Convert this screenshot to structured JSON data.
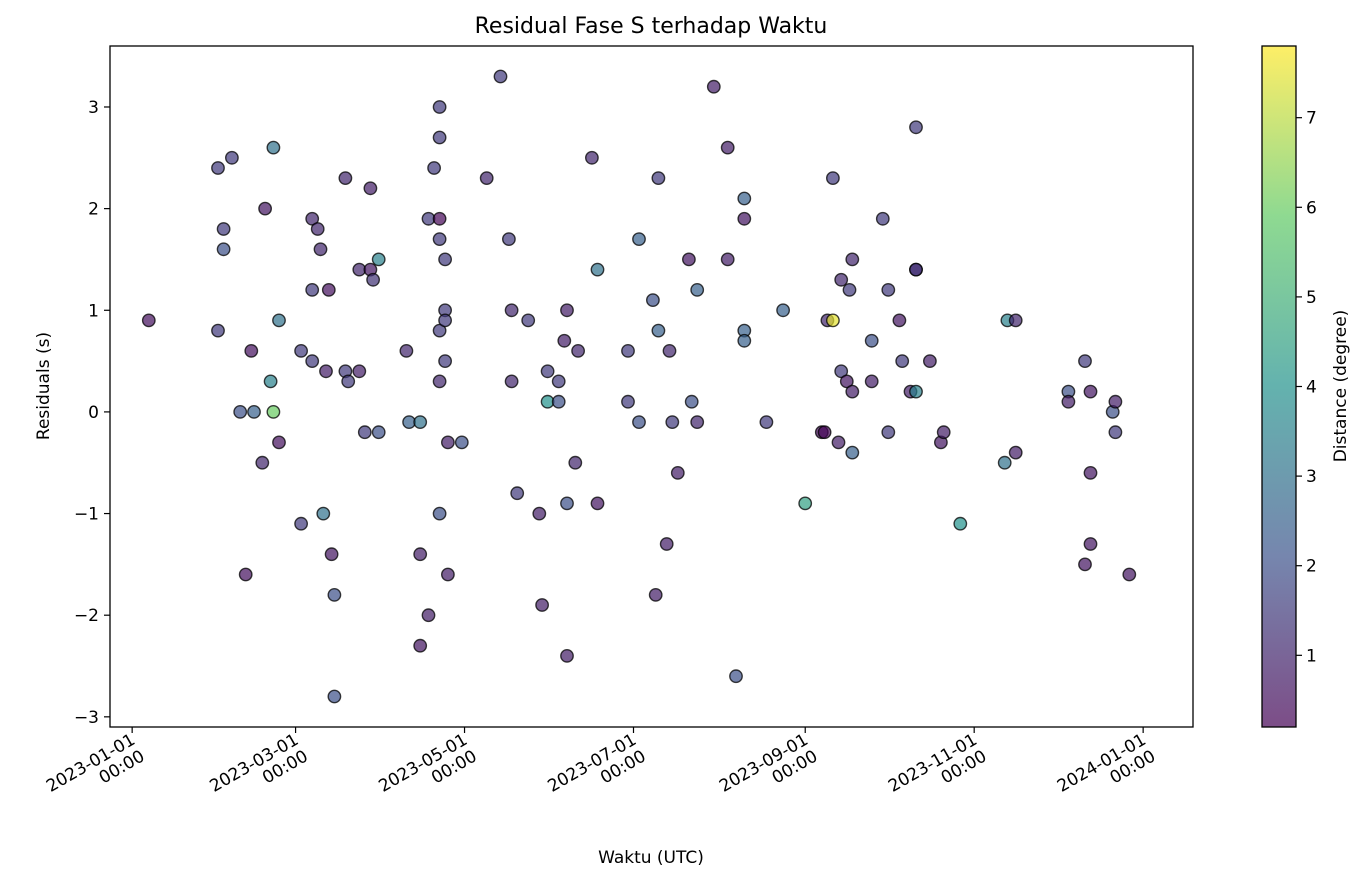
{
  "chart_data": {
    "type": "scatter",
    "title": "Residual Fase S terhadap Waktu",
    "xlabel": "Waktu (UTC)",
    "ylabel": "Residuals (s)",
    "colorbar_label": "Distance (degree)",
    "colormap": "viridis",
    "marker_alpha": 0.7,
    "marker_edge_color": "#000000",
    "grid": false,
    "xlim": [
      "2022-12-24",
      "2024-01-19"
    ],
    "ylim": [
      -3.1,
      3.6
    ],
    "yticks": [
      -3,
      -2,
      -1,
      0,
      1,
      2,
      3
    ],
    "ytick_labels": [
      "−3",
      "−2",
      "−1",
      "0",
      "1",
      "2",
      "3"
    ],
    "xticks": [
      "2023-01-01",
      "2023-03-01",
      "2023-05-01",
      "2023-07-01",
      "2023-09-01",
      "2023-11-01",
      "2024-01-01"
    ],
    "xtick_labels": [
      [
        "2023-01-01",
        "00:00"
      ],
      [
        "2023-03-01",
        "00:00"
      ],
      [
        "2023-05-01",
        "00:00"
      ],
      [
        "2023-07-01",
        "00:00"
      ],
      [
        "2023-09-01",
        "00:00"
      ],
      [
        "2023-11-01",
        "00:00"
      ],
      [
        "2024-01-01",
        "00:00"
      ]
    ],
    "clim": [
      0.2,
      7.8
    ],
    "cticks": [
      1,
      2,
      3,
      4,
      5,
      6,
      7
    ],
    "points": [
      {
        "date": "2023-01-07",
        "y": 0.9,
        "d": 0.5
      },
      {
        "date": "2023-02-01",
        "y": 2.4,
        "d": 1.5
      },
      {
        "date": "2023-02-06",
        "y": 2.5,
        "d": 1.5
      },
      {
        "date": "2023-02-03",
        "y": 1.8,
        "d": 1.5
      },
      {
        "date": "2023-02-03",
        "y": 1.6,
        "d": 2.0
      },
      {
        "date": "2023-02-01",
        "y": 0.8,
        "d": 1.5
      },
      {
        "date": "2023-02-09",
        "y": 0.0,
        "d": 2.0
      },
      {
        "date": "2023-02-14",
        "y": 0.0,
        "d": 2.5
      },
      {
        "date": "2023-02-11",
        "y": -1.6,
        "d": 0.5
      },
      {
        "date": "2023-02-13",
        "y": 0.6,
        "d": 0.5
      },
      {
        "date": "2023-02-18",
        "y": 2.0,
        "d": 0.6
      },
      {
        "date": "2023-02-21",
        "y": 2.6,
        "d": 3.0
      },
      {
        "date": "2023-02-23",
        "y": 0.9,
        "d": 3.0
      },
      {
        "date": "2023-02-20",
        "y": 0.3,
        "d": 3.5
      },
      {
        "date": "2023-02-21",
        "y": 0.0,
        "d": 6.0
      },
      {
        "date": "2023-02-17",
        "y": -0.5,
        "d": 1.0
      },
      {
        "date": "2023-02-23",
        "y": -0.3,
        "d": 0.5
      },
      {
        "date": "2023-03-03",
        "y": 0.6,
        "d": 1.5
      },
      {
        "date": "2023-03-07",
        "y": 0.5,
        "d": 1.5
      },
      {
        "date": "2023-03-03",
        "y": -1.1,
        "d": 1.5
      },
      {
        "date": "2023-03-07",
        "y": 1.9,
        "d": 1.0
      },
      {
        "date": "2023-03-09",
        "y": 1.8,
        "d": 1.0
      },
      {
        "date": "2023-03-10",
        "y": 1.6,
        "d": 1.0
      },
      {
        "date": "2023-03-07",
        "y": 1.2,
        "d": 1.5
      },
      {
        "date": "2023-03-13",
        "y": 1.2,
        "d": 0.5
      },
      {
        "date": "2023-03-12",
        "y": 0.4,
        "d": 0.8
      },
      {
        "date": "2023-03-11",
        "y": -1.0,
        "d": 3.0
      },
      {
        "date": "2023-03-14",
        "y": -1.4,
        "d": 0.6
      },
      {
        "date": "2023-03-15",
        "y": -1.8,
        "d": 2.0
      },
      {
        "date": "2023-03-15",
        "y": -2.8,
        "d": 2.0
      },
      {
        "date": "2023-03-19",
        "y": 2.3,
        "d": 1.0
      },
      {
        "date": "2023-03-19",
        "y": 0.4,
        "d": 1.5
      },
      {
        "date": "2023-03-20",
        "y": 0.3,
        "d": 1.5
      },
      {
        "date": "2023-03-24",
        "y": 1.4,
        "d": 1.0
      },
      {
        "date": "2023-03-24",
        "y": 0.4,
        "d": 0.8
      },
      {
        "date": "2023-03-26",
        "y": -0.2,
        "d": 1.5
      },
      {
        "date": "2023-03-28",
        "y": 2.2,
        "d": 0.8
      },
      {
        "date": "2023-03-28",
        "y": 1.4,
        "d": 0.6
      },
      {
        "date": "2023-03-29",
        "y": 1.3,
        "d": 1.3
      },
      {
        "date": "2023-03-31",
        "y": 1.5,
        "d": 3.5
      },
      {
        "date": "2023-03-31",
        "y": -0.2,
        "d": 2.0
      },
      {
        "date": "2023-04-10",
        "y": 0.6,
        "d": 1.0
      },
      {
        "date": "2023-04-11",
        "y": -0.1,
        "d": 2.5
      },
      {
        "date": "2023-04-15",
        "y": -0.1,
        "d": 3.0
      },
      {
        "date": "2023-04-15",
        "y": -1.4,
        "d": 0.8
      },
      {
        "date": "2023-04-15",
        "y": -2.3,
        "d": 0.6
      },
      {
        "date": "2023-04-18",
        "y": 1.9,
        "d": 1.5
      },
      {
        "date": "2023-04-18",
        "y": -2.0,
        "d": 0.8
      },
      {
        "date": "2023-04-20",
        "y": 2.4,
        "d": 1.5
      },
      {
        "date": "2023-04-22",
        "y": 3.0,
        "d": 1.5
      },
      {
        "date": "2023-04-22",
        "y": 2.7,
        "d": 1.5
      },
      {
        "date": "2023-04-22",
        "y": 1.9,
        "d": 0.3
      },
      {
        "date": "2023-04-22",
        "y": 1.7,
        "d": 1.5
      },
      {
        "date": "2023-04-22",
        "y": 0.8,
        "d": 1.5
      },
      {
        "date": "2023-04-22",
        "y": 0.3,
        "d": 1.0
      },
      {
        "date": "2023-04-22",
        "y": -1.0,
        "d": 2.0
      },
      {
        "date": "2023-04-24",
        "y": 1.5,
        "d": 1.5
      },
      {
        "date": "2023-04-24",
        "y": 1.0,
        "d": 1.5
      },
      {
        "date": "2023-04-24",
        "y": 0.9,
        "d": 1.5
      },
      {
        "date": "2023-04-24",
        "y": 0.5,
        "d": 1.5
      },
      {
        "date": "2023-04-25",
        "y": -0.3,
        "d": 0.8
      },
      {
        "date": "2023-04-25",
        "y": -1.6,
        "d": 0.8
      },
      {
        "date": "2023-04-30",
        "y": -0.3,
        "d": 2.0
      },
      {
        "date": "2023-05-09",
        "y": 2.3,
        "d": 1.0
      },
      {
        "date": "2023-05-14",
        "y": 3.3,
        "d": 1.5
      },
      {
        "date": "2023-05-17",
        "y": 1.7,
        "d": 1.5
      },
      {
        "date": "2023-05-18",
        "y": 1.0,
        "d": 1.0
      },
      {
        "date": "2023-05-18",
        "y": 0.3,
        "d": 1.0
      },
      {
        "date": "2023-05-20",
        "y": -0.8,
        "d": 1.5
      },
      {
        "date": "2023-05-24",
        "y": 0.9,
        "d": 1.5
      },
      {
        "date": "2023-05-28",
        "y": -1.0,
        "d": 0.8
      },
      {
        "date": "2023-05-29",
        "y": -1.9,
        "d": 0.8
      },
      {
        "date": "2023-05-31",
        "y": 0.4,
        "d": 1.5
      },
      {
        "date": "2023-05-31",
        "y": 0.1,
        "d": 4.0
      },
      {
        "date": "2023-06-04",
        "y": 0.3,
        "d": 1.5
      },
      {
        "date": "2023-06-04",
        "y": 0.1,
        "d": 2.0
      },
      {
        "date": "2023-06-06",
        "y": 0.7,
        "d": 0.8
      },
      {
        "date": "2023-06-07",
        "y": 1.0,
        "d": 0.8
      },
      {
        "date": "2023-06-07",
        "y": -0.9,
        "d": 2.0
      },
      {
        "date": "2023-06-07",
        "y": -2.4,
        "d": 0.8
      },
      {
        "date": "2023-06-10",
        "y": -0.5,
        "d": 1.0
      },
      {
        "date": "2023-06-11",
        "y": 0.6,
        "d": 1.0
      },
      {
        "date": "2023-06-16",
        "y": 2.5,
        "d": 1.0
      },
      {
        "date": "2023-06-18",
        "y": 1.4,
        "d": 3.0
      },
      {
        "date": "2023-06-18",
        "y": -0.9,
        "d": 0.6
      },
      {
        "date": "2023-06-29",
        "y": 0.6,
        "d": 1.5
      },
      {
        "date": "2023-06-29",
        "y": 0.1,
        "d": 1.5
      },
      {
        "date": "2023-07-03",
        "y": 1.7,
        "d": 2.5
      },
      {
        "date": "2023-07-03",
        "y": -0.1,
        "d": 2.0
      },
      {
        "date": "2023-07-08",
        "y": 1.1,
        "d": 2.0
      },
      {
        "date": "2023-07-10",
        "y": 2.3,
        "d": 1.5
      },
      {
        "date": "2023-07-10",
        "y": 0.8,
        "d": 2.5
      },
      {
        "date": "2023-07-09",
        "y": -1.8,
        "d": 0.8
      },
      {
        "date": "2023-07-13",
        "y": -1.3,
        "d": 0.8
      },
      {
        "date": "2023-07-14",
        "y": 0.6,
        "d": 1.0
      },
      {
        "date": "2023-07-15",
        "y": -0.1,
        "d": 1.5
      },
      {
        "date": "2023-07-17",
        "y": -0.6,
        "d": 0.8
      },
      {
        "date": "2023-07-21",
        "y": 1.5,
        "d": 0.6
      },
      {
        "date": "2023-07-22",
        "y": 0.1,
        "d": 2.0
      },
      {
        "date": "2023-07-24",
        "y": 1.2,
        "d": 2.5
      },
      {
        "date": "2023-07-24",
        "y": -0.1,
        "d": 1.0
      },
      {
        "date": "2023-07-30",
        "y": 3.2,
        "d": 0.8
      },
      {
        "date": "2023-08-04",
        "y": 2.6,
        "d": 0.8
      },
      {
        "date": "2023-08-04",
        "y": 1.5,
        "d": 0.8
      },
      {
        "date": "2023-08-07",
        "y": -2.6,
        "d": 2.0
      },
      {
        "date": "2023-08-10",
        "y": 2.1,
        "d": 2.5
      },
      {
        "date": "2023-08-10",
        "y": 1.9,
        "d": 0.6
      },
      {
        "date": "2023-08-10",
        "y": 0.8,
        "d": 2.5
      },
      {
        "date": "2023-08-10",
        "y": 0.7,
        "d": 2.5
      },
      {
        "date": "2023-08-18",
        "y": -0.1,
        "d": 1.5
      },
      {
        "date": "2023-08-24",
        "y": 1.0,
        "d": 2.5
      },
      {
        "date": "2023-09-01",
        "y": -0.9,
        "d": 4.5
      },
      {
        "date": "2023-09-07",
        "y": -0.2,
        "d": 0.4
      },
      {
        "date": "2023-09-08",
        "y": -0.2,
        "d": 0.3
      },
      {
        "date": "2023-09-09",
        "y": 0.9,
        "d": 1.0
      },
      {
        "date": "2023-09-11",
        "y": 0.9,
        "d": 7.5
      },
      {
        "date": "2023-09-11",
        "y": 2.3,
        "d": 1.5
      },
      {
        "date": "2023-09-13",
        "y": -0.3,
        "d": 0.8
      },
      {
        "date": "2023-09-14",
        "y": 1.3,
        "d": 1.0
      },
      {
        "date": "2023-09-14",
        "y": 0.4,
        "d": 1.5
      },
      {
        "date": "2023-09-16",
        "y": 0.3,
        "d": 0.6
      },
      {
        "date": "2023-09-17",
        "y": 1.2,
        "d": 1.5
      },
      {
        "date": "2023-09-18",
        "y": 1.5,
        "d": 1.0
      },
      {
        "date": "2023-09-18",
        "y": 0.2,
        "d": 0.8
      },
      {
        "date": "2023-09-18",
        "y": -0.4,
        "d": 2.5
      },
      {
        "date": "2023-09-25",
        "y": 0.7,
        "d": 2.0
      },
      {
        "date": "2023-09-25",
        "y": 0.3,
        "d": 0.8
      },
      {
        "date": "2023-09-29",
        "y": 1.9,
        "d": 1.5
      },
      {
        "date": "2023-10-01",
        "y": 1.2,
        "d": 1.5
      },
      {
        "date": "2023-10-01",
        "y": -0.2,
        "d": 1.5
      },
      {
        "date": "2023-10-05",
        "y": 0.9,
        "d": 0.6
      },
      {
        "date": "2023-10-06",
        "y": 0.5,
        "d": 1.5
      },
      {
        "date": "2023-10-09",
        "y": 0.2,
        "d": 0.8
      },
      {
        "date": "2023-10-11",
        "y": 2.8,
        "d": 1.5
      },
      {
        "date": "2023-10-11",
        "y": 1.4,
        "d": 0.3
      },
      {
        "date": "2023-10-11",
        "y": 1.4,
        "d": 1.5
      },
      {
        "date": "2023-10-11",
        "y": 0.2,
        "d": 3.5
      },
      {
        "date": "2023-10-16",
        "y": 0.5,
        "d": 0.8
      },
      {
        "date": "2023-10-20",
        "y": -0.3,
        "d": 0.6
      },
      {
        "date": "2023-10-21",
        "y": -0.2,
        "d": 0.8
      },
      {
        "date": "2023-10-27",
        "y": -1.1,
        "d": 4.0
      },
      {
        "date": "2023-11-12",
        "y": -0.5,
        "d": 3.0
      },
      {
        "date": "2023-11-13",
        "y": 0.9,
        "d": 3.5
      },
      {
        "date": "2023-11-16",
        "y": 0.9,
        "d": 1.0
      },
      {
        "date": "2023-11-16",
        "y": -0.4,
        "d": 0.8
      },
      {
        "date": "2023-12-05",
        "y": 0.2,
        "d": 2.0
      },
      {
        "date": "2023-12-05",
        "y": 0.1,
        "d": 0.8
      },
      {
        "date": "2023-12-11",
        "y": 0.5,
        "d": 1.5
      },
      {
        "date": "2023-12-11",
        "y": -1.5,
        "d": 0.6
      },
      {
        "date": "2023-12-13",
        "y": 0.2,
        "d": 0.6
      },
      {
        "date": "2023-12-13",
        "y": -0.6,
        "d": 0.6
      },
      {
        "date": "2023-12-13",
        "y": -1.3,
        "d": 0.6
      },
      {
        "date": "2023-12-21",
        "y": 0.0,
        "d": 2.0
      },
      {
        "date": "2023-12-22",
        "y": 0.1,
        "d": 0.8
      },
      {
        "date": "2023-12-22",
        "y": -0.2,
        "d": 1.5
      },
      {
        "date": "2023-12-27",
        "y": -1.6,
        "d": 0.6
      }
    ]
  }
}
